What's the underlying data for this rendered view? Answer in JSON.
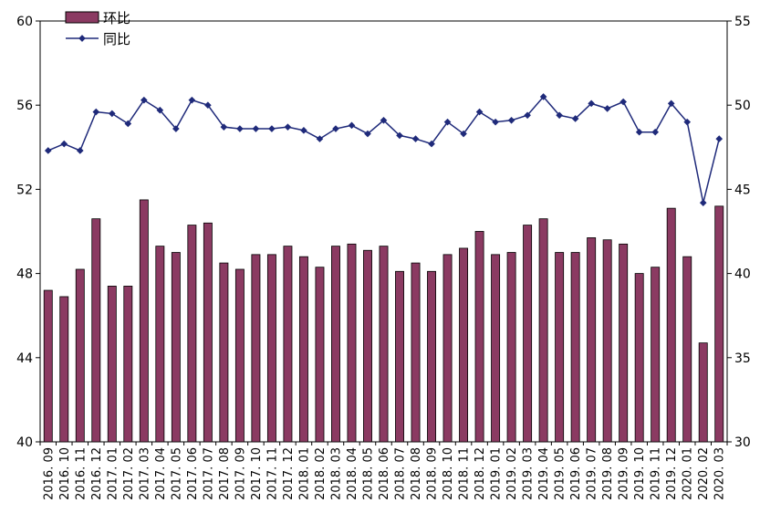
{
  "chart_data": {
    "type": "bar",
    "categories": [
      "2016.09",
      "2016.10",
      "2016.11",
      "2016.12",
      "2017.01",
      "2017.02",
      "2017.03",
      "2017.04",
      "2017.05",
      "2017.06",
      "2017.07",
      "2017.08",
      "2017.09",
      "2017.10",
      "2017.11",
      "2017.12",
      "2018.01",
      "2018.02",
      "2018.03",
      "2018.04",
      "2018.05",
      "2018.06",
      "2018.07",
      "2018.08",
      "2018.09",
      "2018.10",
      "2018.11",
      "2018.12",
      "2019.01",
      "2019.02",
      "2019.03",
      "2019.04",
      "2019.05",
      "2019.06",
      "2019.07",
      "2019.08",
      "2019.09",
      "2019.10",
      "2019.11",
      "2019.12",
      "2020.01",
      "2020.02",
      "2020.03"
    ],
    "series": [
      {
        "name": "环比",
        "type": "bar",
        "axis": "left",
        "color": "#8B3A62",
        "values": [
          47.2,
          46.9,
          48.2,
          50.6,
          47.4,
          47.4,
          51.5,
          49.3,
          49.0,
          50.3,
          50.4,
          48.5,
          48.2,
          48.9,
          48.9,
          49.3,
          48.8,
          48.3,
          49.3,
          49.4,
          49.1,
          49.3,
          48.1,
          48.5,
          48.1,
          48.9,
          49.2,
          50.0,
          48.9,
          49.0,
          50.3,
          50.6,
          49.0,
          49.0,
          49.7,
          49.6,
          49.4,
          48.0,
          48.3,
          51.1,
          48.8,
          44.7,
          51.2
        ]
      },
      {
        "name": "同比",
        "type": "line",
        "axis": "right",
        "color": "#1F2A7A",
        "values": [
          47.3,
          47.7,
          47.3,
          49.6,
          49.5,
          48.9,
          50.3,
          49.7,
          48.6,
          50.3,
          50.0,
          48.7,
          48.6,
          48.6,
          48.6,
          48.7,
          48.5,
          48.0,
          48.6,
          48.8,
          48.3,
          49.1,
          48.2,
          48.0,
          47.7,
          49.0,
          48.3,
          49.6,
          49.0,
          49.1,
          49.4,
          50.5,
          49.4,
          49.2,
          50.1,
          49.8,
          50.2,
          48.4,
          48.4,
          50.1,
          49.0,
          44.2,
          48.0
        ]
      }
    ],
    "ylim_left": [
      40,
      60
    ],
    "yticks_left": [
      40,
      44,
      48,
      52,
      56,
      60
    ],
    "ylim_right": [
      30,
      55
    ],
    "yticks_right": [
      30,
      35,
      40,
      45,
      50,
      55
    ],
    "title": "",
    "xlabel": "",
    "ylabel": "",
    "legend": "top-left",
    "grid": false
  }
}
